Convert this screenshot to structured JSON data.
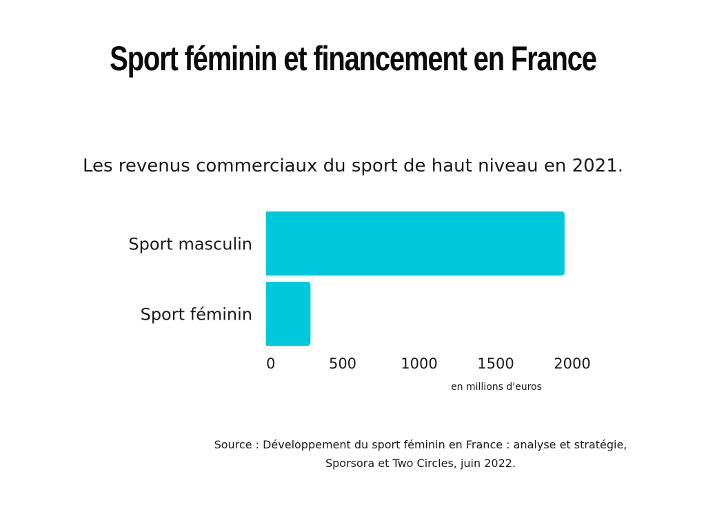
{
  "header": {
    "title": "Sport féminin et financement en France",
    "subtitle": "Les revenus commerciaux du sport de haut niveau en 2021."
  },
  "chart_data": {
    "type": "bar",
    "orientation": "horizontal",
    "categories": [
      "Sport masculin",
      "Sport féminin"
    ],
    "values": [
      1950,
      290
    ],
    "xlim": [
      0,
      2000
    ],
    "x_ticks": [
      "0",
      "500",
      "1000",
      "1500",
      "2000"
    ],
    "xlabel": "en millions d'euros",
    "ylabel": "",
    "grid": false,
    "legend": "none",
    "bar_color": "#00c8dc"
  },
  "footer": {
    "source_line1": "Source : Développement du sport féminin en France : analyse et stratégie,",
    "source_line2": "Sporsora et Two Circles, juin 2022."
  },
  "colors": {
    "background": "#ffffff",
    "text": "#111111",
    "bar": "#00c8dc"
  }
}
